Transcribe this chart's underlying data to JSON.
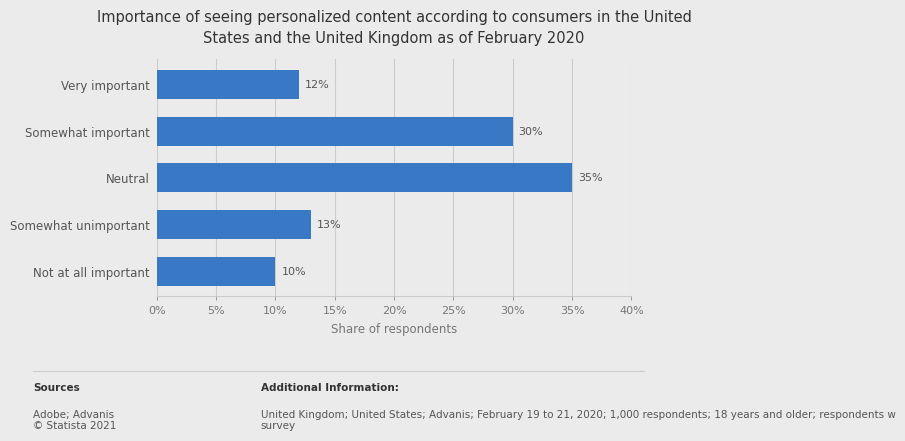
{
  "title": "Importance of seeing personalized content according to consumers in the United\nStates and the United Kingdom as of February 2020",
  "categories": [
    "Very important",
    "Somewhat important",
    "Neutral",
    "Somewhat unimportant",
    "Not at all important"
  ],
  "values": [
    12,
    30,
    35,
    13,
    10
  ],
  "bar_color": "#3878c5",
  "xlabel": "Share of respondents",
  "xlim": [
    0,
    40
  ],
  "xticks": [
    0,
    5,
    10,
    15,
    20,
    25,
    30,
    35,
    40
  ],
  "xtick_labels": [
    "0%",
    "5%",
    "10%",
    "15%",
    "20%",
    "25%",
    "30%",
    "35%",
    "40%"
  ],
  "background_color": "#ebebeb",
  "plot_bg_color": "#ebebeb",
  "title_fontsize": 10.5,
  "label_fontsize": 8.5,
  "tick_fontsize": 8,
  "bar_label_fontsize": 8,
  "sources_text": "Sources\nAdobe; Advanis\n© Statista 2021",
  "additional_text": "Additional Information:\nUnited Kingdom; United States; Advanis; February 19 to 21, 2020; 1,000 respondents; 18 years and older; respondents w\nsurvey",
  "sources_bold": "Sources",
  "additional_bold": "Additional Information:"
}
